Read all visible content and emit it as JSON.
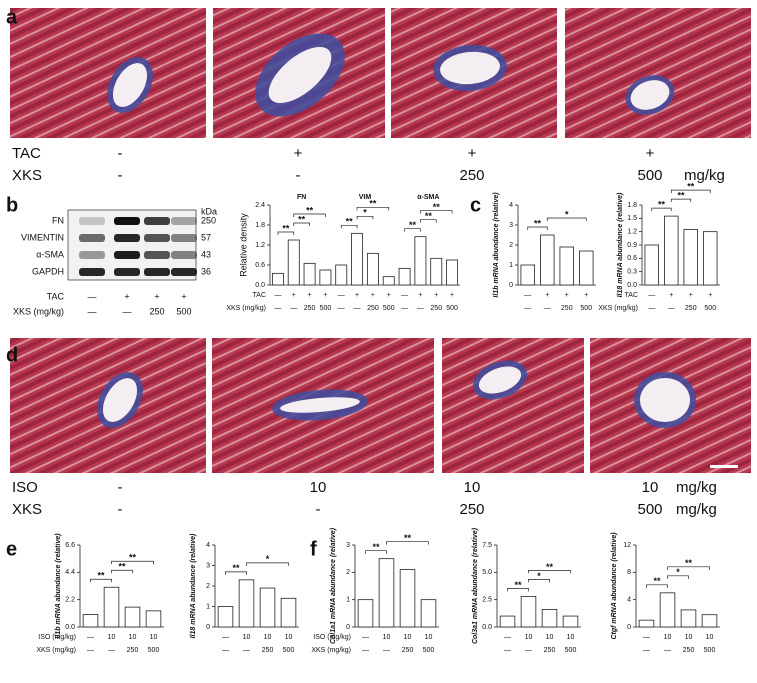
{
  "panel_labels": [
    "a",
    "b",
    "c",
    "d",
    "e",
    "f"
  ],
  "histology_a": {
    "rows": [
      {
        "label": "TAC",
        "values": [
          "-",
          "+",
          "+",
          "+"
        ]
      },
      {
        "label": "XKS",
        "values": [
          "-",
          "-",
          "250",
          "500"
        ],
        "unit": "mg/kg"
      }
    ]
  },
  "blot": {
    "unit": "kDa",
    "bands": [
      {
        "label": "FN",
        "kda": 250
      },
      {
        "label": "VIMENTIN",
        "kda": 57
      },
      {
        "label": "α-SMA",
        "kda": 43
      },
      {
        "label": "GAPDH",
        "kda": 36
      }
    ],
    "rows": [
      {
        "label": "TAC",
        "values": [
          "—",
          "+",
          "+",
          "+"
        ]
      },
      {
        "label": "XKS (mg/kg)",
        "values": [
          "—",
          "—",
          "250",
          "500"
        ]
      }
    ]
  },
  "histology_d": {
    "rows": [
      {
        "label": "ISO",
        "values": [
          "-",
          "10",
          "10",
          "10"
        ],
        "unit": "mg/kg"
      },
      {
        "label": "XKS",
        "values": [
          "-",
          "-",
          "250",
          "500"
        ],
        "unit": "mg/kg"
      }
    ]
  },
  "chart_data": [
    {
      "type": "bar",
      "ylabel": "Relative density",
      "ylim": [
        0,
        2.4
      ],
      "yticks": [
        {
          "value": 0,
          "label": "0.0"
        },
        0.6,
        1.2,
        1.8,
        2.4
      ],
      "color": "#ffffff",
      "groups": [
        {
          "name": "FN",
          "values": [
            0.35,
            1.35,
            0.65,
            0.45
          ],
          "annotations": [
            "**",
            "**",
            "**"
          ]
        },
        {
          "name": "VIM",
          "values": [
            0.6,
            1.55,
            0.95,
            0.25
          ],
          "annotations": [
            "**",
            "*",
            "**"
          ]
        },
        {
          "name": "α-SMA",
          "values": [
            0.5,
            1.45,
            0.8,
            0.75
          ],
          "annotations": [
            "**",
            "**",
            "**"
          ]
        }
      ],
      "rows": [
        {
          "label": "TAC",
          "values": [
            "—",
            "+",
            "+",
            "+"
          ]
        },
        {
          "label": "XKS (mg/kg)",
          "values": [
            "—",
            "—",
            "250",
            "500"
          ]
        }
      ]
    },
    {
      "type": "bar",
      "ylabel": "Il1b mRNA abundance (relative)",
      "ylim": [
        0,
        4
      ],
      "yticks": [
        0,
        1,
        2,
        3,
        4
      ],
      "color": "#ffffff",
      "values": [
        1.0,
        2.5,
        1.9,
        1.7
      ],
      "annotations": [
        "**",
        "*"
      ],
      "rows": [
        {
          "values": [
            "—",
            "+",
            "+",
            "+"
          ]
        },
        {
          "values": [
            "—",
            "—",
            "250",
            "500"
          ]
        }
      ]
    },
    {
      "type": "bar",
      "ylabel": "Il18 mRNA abundance (relative)",
      "ylim": [
        0,
        1.8
      ],
      "yticks": [
        {
          "value": 0,
          "label": "0.0"
        },
        0.3,
        0.6,
        0.9,
        1.2,
        1.5,
        1.8
      ],
      "color": "#ffffff",
      "values": [
        0.9,
        1.55,
        1.25,
        1.2
      ],
      "annotations": [
        "**",
        "**",
        "**"
      ],
      "rows": [
        {
          "label": "TAC",
          "values": [
            "—",
            "+",
            "+",
            "+"
          ]
        },
        {
          "label": "XKS (mg/kg)",
          "values": [
            "—",
            "—",
            "250",
            "500"
          ]
        }
      ]
    },
    {
      "type": "bar",
      "ylabel": "Il1b mRNA abundance (relative)",
      "ylim": [
        0,
        6.6
      ],
      "yticks": [
        {
          "value": 0,
          "label": "0.0"
        },
        2.2,
        4.4,
        6.6
      ],
      "color": "#ffffff",
      "values": [
        1.0,
        3.2,
        1.6,
        1.3
      ],
      "annotations": [
        "**",
        "**",
        "**"
      ],
      "rows": [
        {
          "label": "ISO (mg/kg)",
          "values": [
            "—",
            "10",
            "10",
            "10"
          ]
        },
        {
          "label": "XKS (mg/kg)",
          "values": [
            "—",
            "—",
            "250",
            "500"
          ]
        }
      ]
    },
    {
      "type": "bar",
      "ylabel": "Il18 mRNA abundance (relative)",
      "ylim": [
        0,
        4
      ],
      "yticks": [
        0,
        1,
        2,
        3,
        4
      ],
      "color": "#ffffff",
      "values": [
        1.0,
        2.3,
        1.9,
        1.4
      ],
      "annotations": [
        "**",
        "*"
      ],
      "rows": [
        {
          "values": [
            "—",
            "10",
            "10",
            "10"
          ]
        },
        {
          "values": [
            "—",
            "—",
            "250",
            "500"
          ]
        }
      ]
    },
    {
      "type": "bar",
      "ylabel": "Col1a1 mRNA abundance (relative)",
      "ylim": [
        0,
        3
      ],
      "yticks": [
        0,
        1,
        2,
        3
      ],
      "color": "#ffffff",
      "values": [
        1.0,
        2.5,
        2.1,
        1.0
      ],
      "annotations": [
        "**",
        "**"
      ],
      "rows": [
        {
          "label": "ISO (mg/kg)",
          "values": [
            "—",
            "10",
            "10",
            "10"
          ]
        },
        {
          "label": "XKS (mg/kg)",
          "values": [
            "—",
            "—",
            "250",
            "500"
          ]
        }
      ]
    },
    {
      "type": "bar",
      "ylabel": "Col3a1 mRNA abundance (relative)",
      "ylim": [
        0,
        7.5
      ],
      "yticks": [
        {
          "value": 0,
          "label": "0.0"
        },
        2.5,
        {
          "value": 5,
          "label": "5.0"
        },
        7.5
      ],
      "color": "#ffffff",
      "values": [
        1.0,
        2.8,
        1.6,
        1.0
      ],
      "annotations": [
        "**",
        "*",
        "**"
      ],
      "rows": [
        {
          "values": [
            "—",
            "10",
            "10",
            "10"
          ]
        },
        {
          "values": [
            "—",
            "—",
            "250",
            "500"
          ]
        }
      ]
    },
    {
      "type": "bar",
      "ylabel": "Ctgf mRNA abundance (relative)",
      "ylim": [
        0,
        12
      ],
      "yticks": [
        0,
        4,
        8,
        12
      ],
      "color": "#ffffff",
      "values": [
        1.0,
        5.0,
        2.5,
        1.8
      ],
      "annotations": [
        "**",
        "*",
        "**"
      ],
      "rows": [
        {
          "values": [
            "—",
            "10",
            "10",
            "10"
          ]
        },
        {
          "values": [
            "—",
            "—",
            "250",
            "500"
          ]
        }
      ]
    }
  ]
}
